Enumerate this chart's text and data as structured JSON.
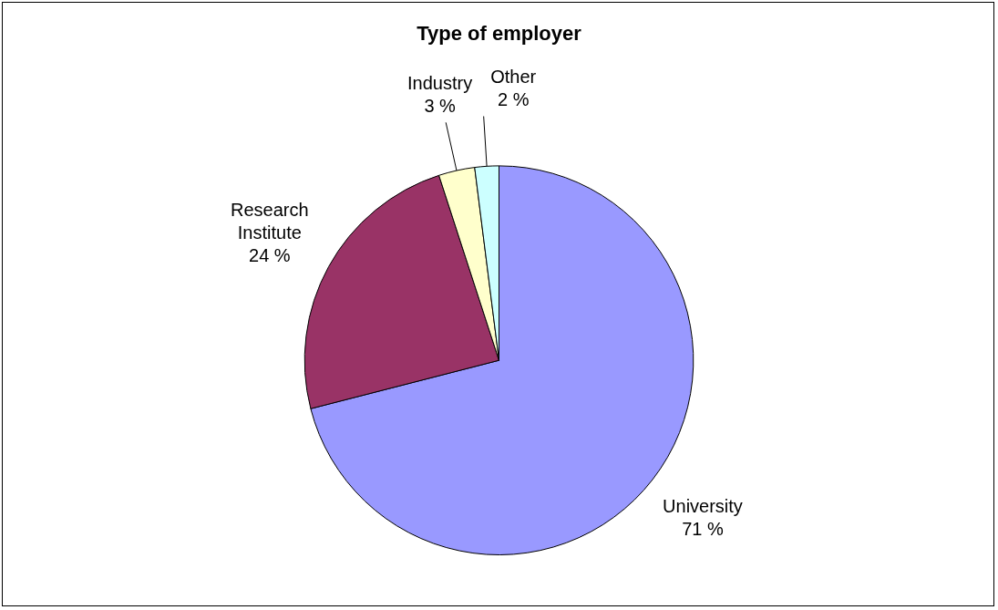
{
  "chart_data": {
    "type": "pie",
    "title": "Type of employer",
    "categories": [
      "University",
      "Research Institute",
      "Industry",
      "Other"
    ],
    "values": [
      71,
      24,
      3,
      2
    ],
    "colors": [
      "#9999ff",
      "#993366",
      "#ffffcc",
      "#ccffff"
    ],
    "value_labels": [
      "71 %",
      "24 %",
      "3 %",
      "2 %"
    ],
    "legend": false
  }
}
